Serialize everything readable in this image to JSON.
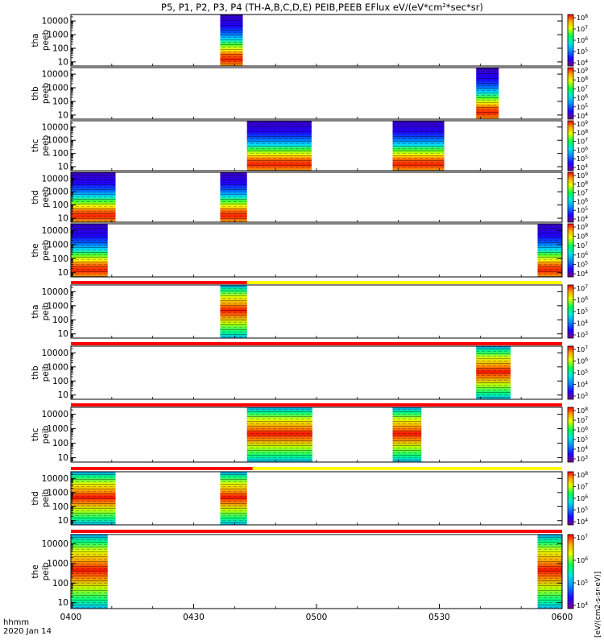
{
  "chart_data": {
    "type": "heatmap",
    "title": "P5, P1, P2, P3, P4 (TH-A,B,C,D,E) PEIB,PEEB EFlux eV/(eV*cm",
    "title_sup": "2",
    "title_tail": "*sec*sr)",
    "x_ticks": [
      "0400",
      "0430",
      "0500",
      "0530",
      "0600"
    ],
    "x_label_line1": "hhmm",
    "x_label_line2": "2020 Jan 14",
    "x_range_hours": [
      4.0,
      6.0
    ],
    "y_scale": "log",
    "y_range_eV": [
      5,
      30000
    ],
    "y_ticks": [
      "10",
      "100",
      "1000",
      "10000"
    ],
    "colorbar_label": "[eV/(cm2-s-sr-eV)]",
    "colormap": [
      "#7b0090",
      "#2200ff",
      "#0090ff",
      "#00e6e6",
      "#00ff55",
      "#e6ff00",
      "#ffaa00",
      "#ff0000"
    ],
    "flag_colors": {
      "red": "#ff0000",
      "yellow": "#ffff00"
    },
    "panels": [
      {
        "probe": "tha",
        "species": "peeb",
        "cbar_exps": [
          "4",
          "5",
          "6",
          "7",
          "8"
        ],
        "intervals": [
          [
            4.608,
            4.7
          ]
        ],
        "flag": null
      },
      {
        "probe": "thb",
        "species": "peeb",
        "cbar_exps": [
          "4",
          "5",
          "6",
          "7",
          "8",
          "9"
        ],
        "intervals": [
          [
            5.65,
            5.742
          ]
        ],
        "flag": null
      },
      {
        "probe": "thc",
        "species": "peeb",
        "cbar_exps": [
          "4",
          "5",
          "6",
          "7",
          "8",
          "9"
        ],
        "intervals": [
          [
            4.717,
            4.98
          ],
          [
            5.31,
            5.52
          ]
        ],
        "flag": null
      },
      {
        "probe": "thd",
        "species": "peeb",
        "cbar_exps": [
          "4",
          "5",
          "6",
          "7",
          "8",
          "9"
        ],
        "intervals": [
          [
            4.0,
            4.182
          ],
          [
            4.608,
            4.717
          ]
        ],
        "flag": null
      },
      {
        "probe": "the",
        "species": "peeb",
        "cbar_exps": [
          "4",
          "5",
          "6",
          "7",
          "8",
          "9"
        ],
        "intervals": [
          [
            4.0,
            4.15
          ],
          [
            5.9,
            6.0
          ]
        ],
        "flag": {
          "segments": [
            [
              "red",
              4.0,
              4.717
            ],
            [
              "yellow",
              4.717,
              6.0
            ]
          ]
        }
      },
      {
        "probe": "tha",
        "species": "peib",
        "cbar_exps": [
          "3",
          "4",
          "5",
          "6",
          "7"
        ],
        "intervals": [
          [
            4.608,
            4.717
          ]
        ],
        "flag": {
          "segments": [
            [
              "red",
              4.0,
              6.0
            ]
          ]
        }
      },
      {
        "probe": "thb",
        "species": "peib",
        "cbar_exps": [
          "3",
          "4",
          "5",
          "6",
          "7"
        ],
        "intervals": [
          [
            5.65,
            5.79
          ]
        ],
        "flag": {
          "segments": [
            [
              "red",
              4.0,
              6.0
            ]
          ]
        }
      },
      {
        "probe": "thc",
        "species": "peib",
        "cbar_exps": [
          "3",
          "4",
          "5",
          "6",
          "7",
          "8"
        ],
        "intervals": [
          [
            4.717,
            4.983
          ],
          [
            5.31,
            5.427
          ]
        ],
        "flag": {
          "segments": [
            [
              "red",
              4.0,
              4.74
            ],
            [
              "yellow",
              4.74,
              6.0
            ]
          ]
        }
      },
      {
        "probe": "thd",
        "species": "peib",
        "cbar_exps": [
          "4",
          "5",
          "6",
          "7",
          "8"
        ],
        "intervals": [
          [
            4.0,
            4.182
          ],
          [
            4.608,
            4.717
          ]
        ],
        "flag": {
          "segments": [
            [
              "red",
              4.0,
              6.0
            ]
          ]
        }
      },
      {
        "probe": "the",
        "species": "peib",
        "cbar_exps": [
          "4",
          "5",
          "6",
          "7"
        ],
        "intervals": [
          [
            4.0,
            4.15
          ],
          [
            5.9,
            6.0
          ]
        ],
        "flag": null
      }
    ]
  }
}
